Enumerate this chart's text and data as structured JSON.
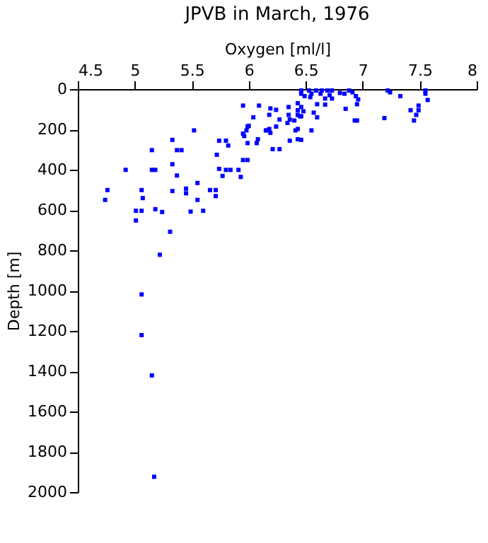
{
  "chart_data": {
    "type": "scatter",
    "title": "JPVB in March, 1976",
    "xlabel": "Oxygen [ml/l]",
    "ylabel": "Depth [m]",
    "x": [
      5.95,
      6.09,
      6.04,
      5.99,
      6.15,
      5.52,
      5.95,
      5.96,
      5.99,
      6.08,
      6.07,
      5.74,
      5.8,
      5.82,
      5.33,
      5.15,
      5.37,
      5.41,
      5.72,
      5.95,
      5.99,
      5.33,
      4.92,
      5.15,
      5.18,
      5.37,
      5.74,
      5.77,
      5.8,
      5.84,
      5.91,
      5.93,
      5.55,
      4.76,
      5.06,
      5.33,
      5.45,
      5.45,
      5.66,
      5.71,
      5.71,
      4.74,
      5.07,
      5.55,
      5.01,
      5.06,
      5.18,
      5.24,
      5.49,
      5.6,
      5.01,
      5.31,
      5.22,
      5.06,
      5.06,
      5.15,
      5.17,
      6.19,
      6.24,
      6.35,
      6.46,
      6.46,
      6.49,
      6.53,
      6.55,
      6.54,
      6.59,
      6.63,
      6.64,
      6.69,
      6.71,
      6.73,
      6.8,
      6.84,
      6.88,
      6.91,
      6.94,
      6.96,
      6.67,
      6.6,
      6.43,
      6.46,
      6.43,
      6.48,
      6.43,
      6.46,
      6.57,
      6.6,
      6.67,
      6.73,
      6.85,
      6.95,
      6.93,
      6.95,
      6.35,
      6.36,
      6.34,
      6.18,
      6.27,
      6.18,
      6.19,
      6.16,
      6.0,
      5.98,
      6.24,
      6.4,
      6.45,
      6.41,
      6.43,
      6.55,
      6.36,
      6.43,
      6.46,
      6.21,
      6.27,
      7.22,
      7.24,
      7.33,
      7.19,
      7.42,
      7.49,
      7.49,
      7.47,
      7.45,
      7.55,
      7.55,
      7.57
    ],
    "series": [
      {
        "color": "#0000ff",
        "values": [
          82,
          82,
          140,
          186,
          205,
          205,
          221,
          233,
          268,
          249,
          268,
          256,
          256,
          280,
          252,
          303,
          303,
          303,
          326,
          352,
          352,
          373,
          401,
          401,
          401,
          429,
          396,
          431,
          401,
          401,
          401,
          436,
          466,
          501,
          501,
          506,
          494,
          517,
          501,
          501,
          531,
          550,
          541,
          550,
          604,
          604,
          596,
          610,
          608,
          604,
          652,
          708,
          822,
          1019,
          1221,
          1421,
          1924,
          96,
          103,
          89,
          7,
          23,
          35,
          7,
          23,
          40,
          7,
          23,
          7,
          7,
          30,
          7,
          19,
          23,
          7,
          16,
          35,
          51,
          47,
          75,
          70,
          89,
          105,
          110,
          128,
          135,
          117,
          140,
          77,
          47,
          98,
          75,
          156,
          156,
          128,
          151,
          168,
          128,
          151,
          198,
          217,
          205,
          182,
          205,
          186,
          156,
          135,
          205,
          198,
          205,
          256,
          249,
          252,
          298,
          298,
          7,
          16,
          35,
          144,
          105,
          82,
          105,
          128,
          156,
          7,
          23,
          54
        ]
      }
    ],
    "xlim": [
      4.5,
      8
    ],
    "xticks": [
      4.5,
      5,
      5.5,
      6,
      6.5,
      7,
      7.5,
      8
    ],
    "ylim": [
      2000,
      0
    ],
    "yticks": [
      0,
      200,
      400,
      600,
      800,
      1000,
      1200,
      1400,
      1600,
      1800,
      2000
    ],
    "marker": "square",
    "grid": false,
    "legend": false
  }
}
